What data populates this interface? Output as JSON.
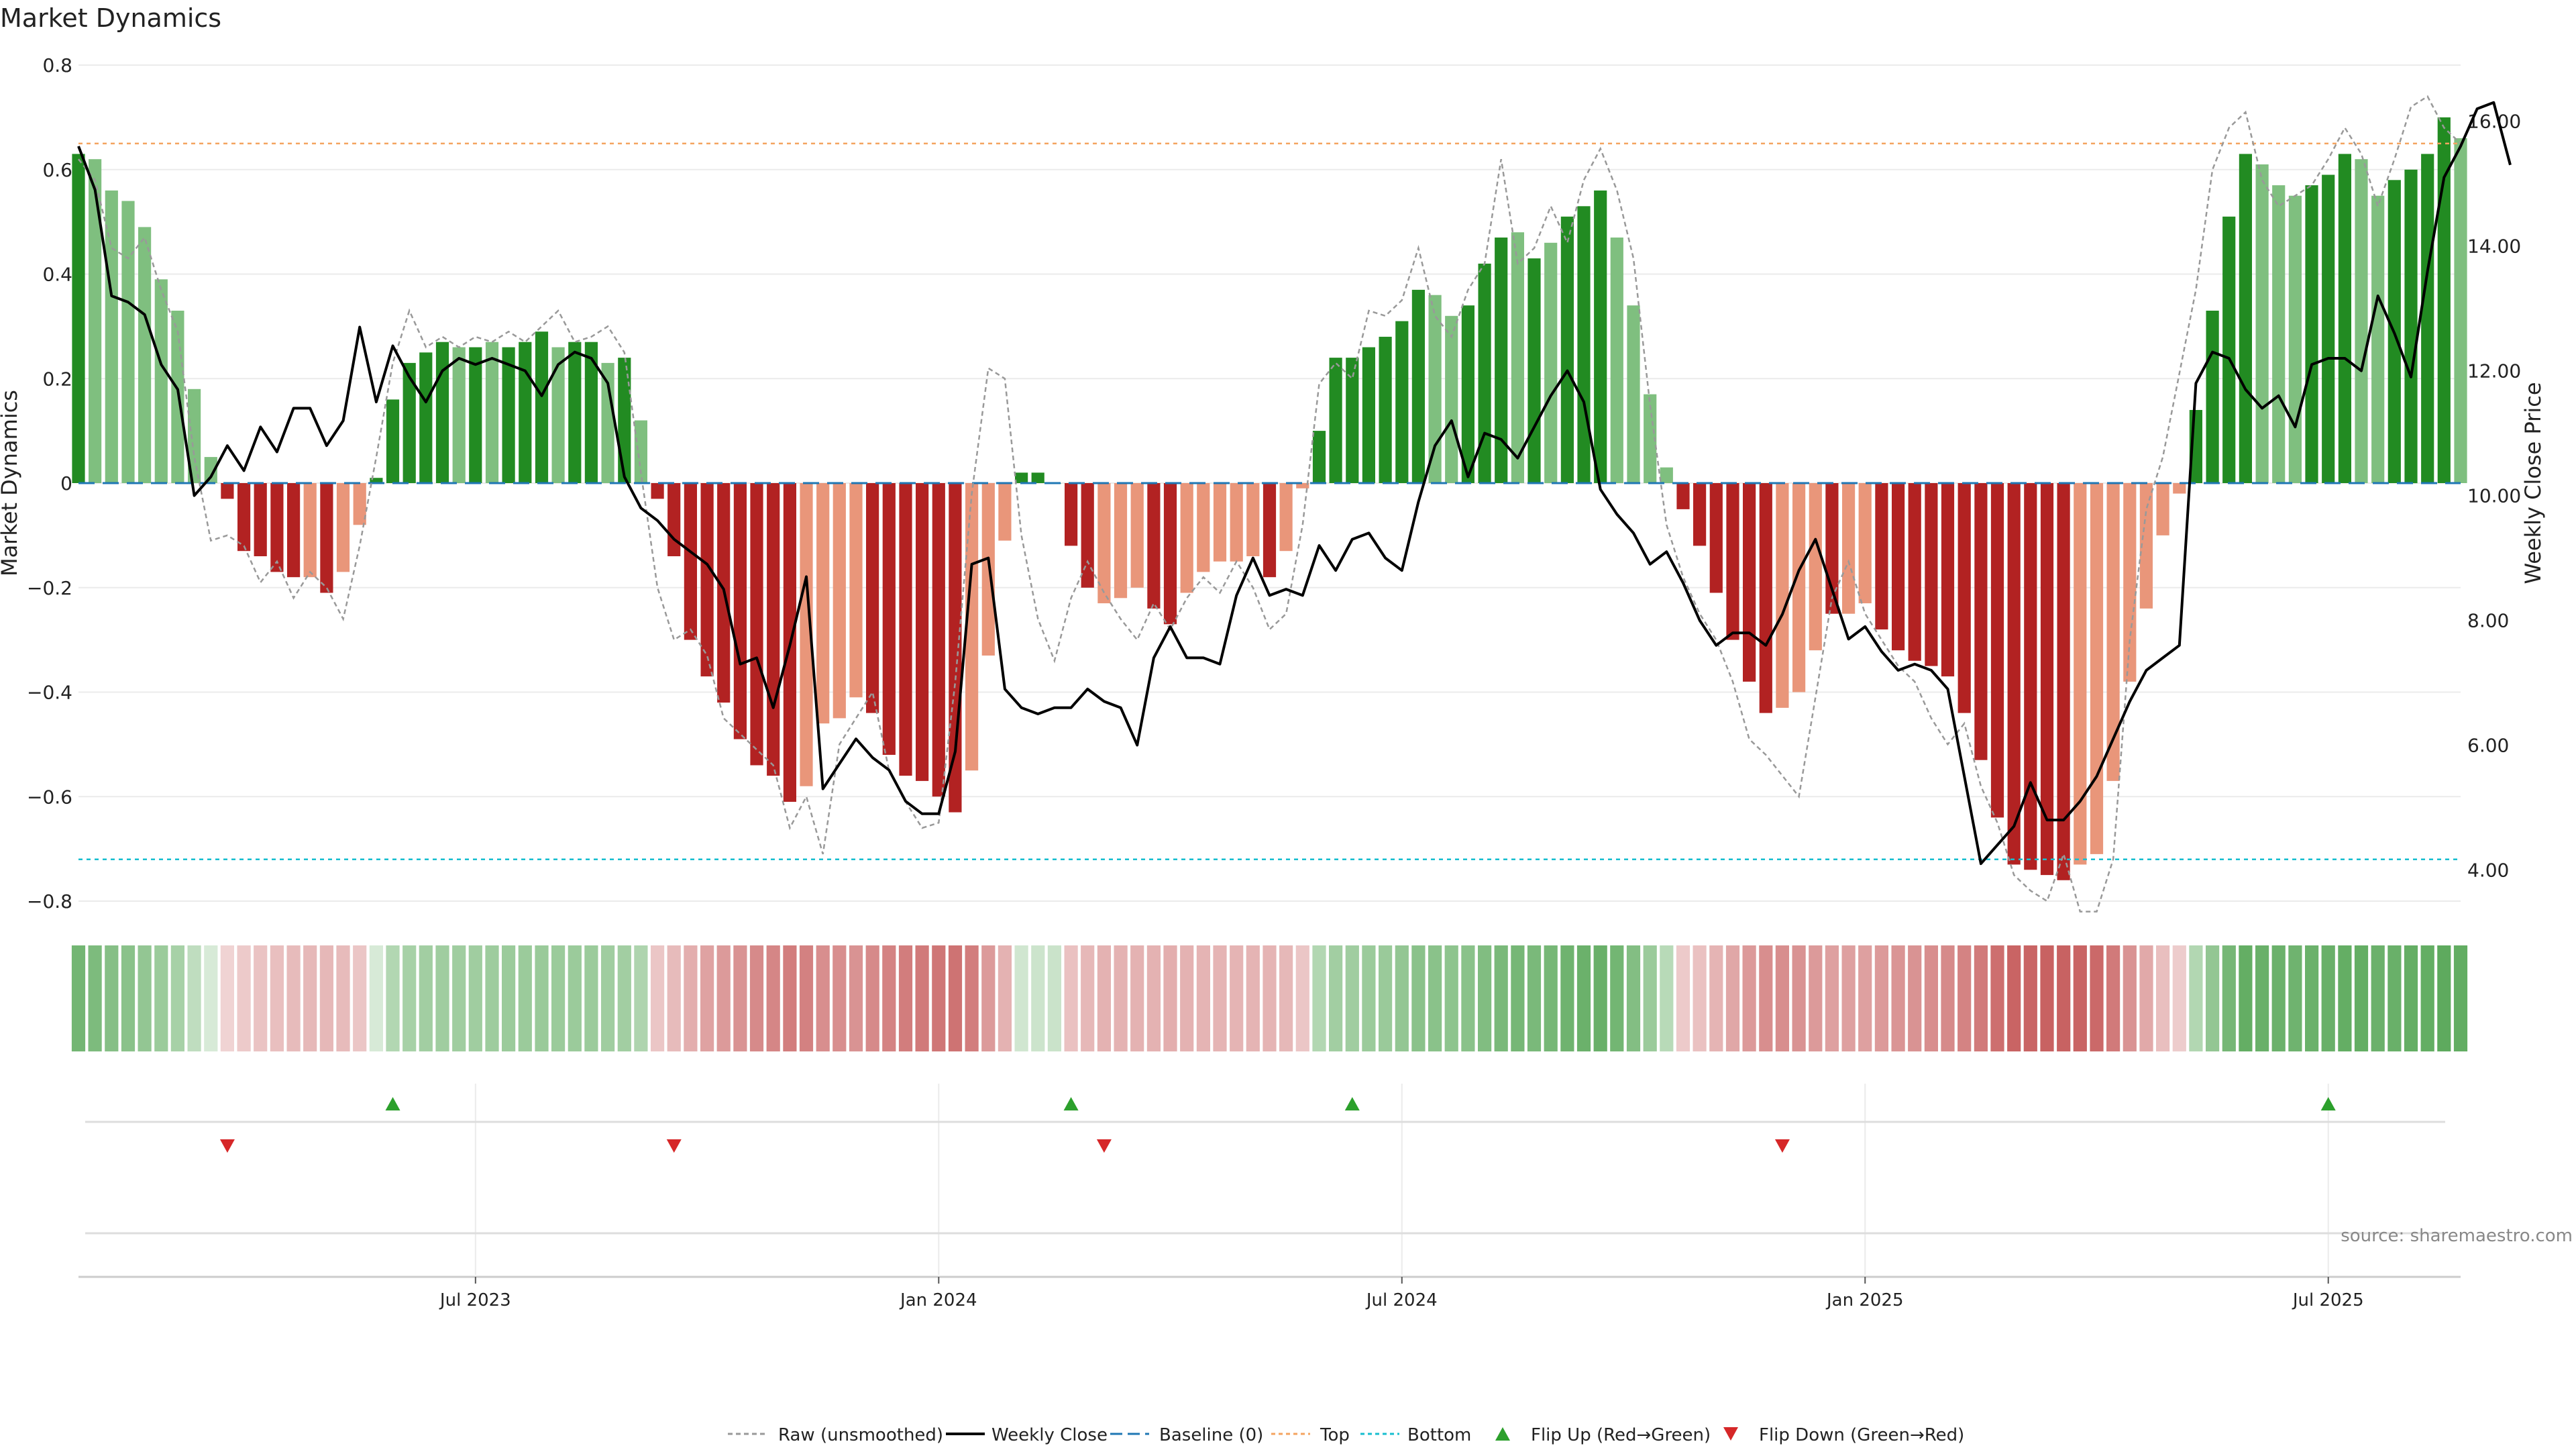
{
  "page_title": "Market Dynamics",
  "source_text": "source: sharemaestro.com",
  "colors": {
    "bar_green_strong": "#228B22",
    "bar_green_light": "#7FBF7F",
    "bar_red_strong": "#B22222",
    "bar_red_light": "#E9967A",
    "close_line": "#000000",
    "raw_line": "#999999",
    "baseline": "#1F77B4",
    "top_line": "#F4A460",
    "bottom_line": "#17BECF",
    "flip_up": "#2CA02C",
    "flip_down": "#D62728",
    "grid": "#EBEBEB"
  },
  "chart_data": {
    "type": "bar",
    "title": "Market Dynamics",
    "ylabel": "Market Dynamics",
    "y2label": "Weekly Close Price",
    "ylim": [
      -0.8,
      0.8
    ],
    "y_ticks": [
      "0.8",
      "0.6",
      "0.4",
      "0.2",
      "0",
      "−0.2",
      "−0.4",
      "−0.6",
      "−0.8"
    ],
    "y_tick_values": [
      0.8,
      0.6,
      0.4,
      0.2,
      0,
      -0.2,
      -0.4,
      -0.6,
      -0.8
    ],
    "y2lim": [
      3.5,
      16.9
    ],
    "y2_ticks": [
      "16.00",
      "14.00",
      "12.00",
      "10.00",
      "8.00",
      "6.00",
      "4.00"
    ],
    "y2_tick_values": [
      16,
      14,
      12,
      10,
      8,
      6,
      4
    ],
    "x_tick_labels": [
      "Jul 2023",
      "Jan 2024",
      "Jul 2024",
      "Jan 2025",
      "Jul 2025"
    ],
    "x_tick_index": [
      24,
      52,
      80,
      108,
      136
    ],
    "top_level": 0.65,
    "bottom_level": -0.72,
    "grid": true,
    "legend_placement": "bottom-center",
    "legend": [
      "Raw (unsmoothed)",
      "Weekly Close",
      "Baseline (0)",
      "Top",
      "Bottom",
      "Flip Up (Red→Green)",
      "Flip Down (Green→Red)"
    ],
    "bar_values": [
      0.63,
      0.62,
      0.56,
      0.54,
      0.49,
      0.39,
      0.33,
      0.18,
      0.05,
      -0.03,
      -0.13,
      -0.14,
      -0.17,
      -0.18,
      -0.18,
      -0.21,
      -0.17,
      -0.08,
      0.01,
      0.16,
      0.23,
      0.25,
      0.27,
      0.26,
      0.26,
      0.27,
      0.26,
      0.27,
      0.29,
      0.26,
      0.27,
      0.27,
      0.23,
      0.24,
      0.12,
      -0.03,
      -0.14,
      -0.3,
      -0.37,
      -0.42,
      -0.49,
      -0.54,
      -0.56,
      -0.61,
      -0.58,
      -0.46,
      -0.45,
      -0.41,
      -0.44,
      -0.52,
      -0.56,
      -0.57,
      -0.6,
      -0.63,
      -0.55,
      -0.33,
      -0.11,
      0.02,
      0.02,
      0.0,
      -0.12,
      -0.2,
      -0.23,
      -0.22,
      -0.2,
      -0.24,
      -0.27,
      -0.21,
      -0.17,
      -0.15,
      -0.15,
      -0.14,
      -0.18,
      -0.13,
      -0.01,
      0.1,
      0.24,
      0.24,
      0.26,
      0.28,
      0.31,
      0.37,
      0.36,
      0.32,
      0.34,
      0.42,
      0.47,
      0.48,
      0.43,
      0.46,
      0.51,
      0.53,
      0.56,
      0.47,
      0.34,
      0.17,
      0.03,
      -0.05,
      -0.12,
      -0.21,
      -0.3,
      -0.38,
      -0.44,
      -0.43,
      -0.4,
      -0.32,
      -0.25,
      -0.25,
      -0.23,
      -0.28,
      -0.32,
      -0.34,
      -0.35,
      -0.37,
      -0.44,
      -0.53,
      -0.64,
      -0.73,
      -0.74,
      -0.75,
      -0.76,
      -0.73,
      -0.71,
      -0.57,
      -0.38,
      -0.24,
      -0.1,
      -0.02,
      0.14,
      0.33,
      0.51,
      0.63,
      0.61,
      0.57,
      0.55,
      0.57,
      0.59,
      0.63,
      0.62,
      0.55,
      0.58,
      0.6,
      0.63,
      0.7,
      0.66
    ],
    "bar_shade": [
      "strong",
      "light",
      "light",
      "light",
      "light",
      "light",
      "light",
      "light",
      "light",
      "strong",
      "strong",
      "strong",
      "strong",
      "strong",
      "light",
      "strong",
      "light",
      "light",
      "strong",
      "strong",
      "strong",
      "strong",
      "strong",
      "light",
      "strong",
      "light",
      "strong",
      "strong",
      "strong",
      "light",
      "strong",
      "strong",
      "light",
      "strong",
      "light",
      "strong",
      "strong",
      "strong",
      "strong",
      "strong",
      "strong",
      "strong",
      "strong",
      "strong",
      "light",
      "light",
      "light",
      "light",
      "strong",
      "strong",
      "strong",
      "strong",
      "strong",
      "strong",
      "light",
      "light",
      "light",
      "strong",
      "strong",
      "strong",
      "strong",
      "strong",
      "light",
      "light",
      "light",
      "strong",
      "strong",
      "light",
      "light",
      "light",
      "light",
      "light",
      "strong",
      "light",
      "light",
      "strong",
      "strong",
      "strong",
      "strong",
      "strong",
      "strong",
      "strong",
      "light",
      "light",
      "strong",
      "strong",
      "strong",
      "light",
      "strong",
      "light",
      "strong",
      "strong",
      "strong",
      "light",
      "light",
      "light",
      "light",
      "strong",
      "strong",
      "strong",
      "strong",
      "strong",
      "strong",
      "light",
      "light",
      "light",
      "strong",
      "light",
      "light",
      "strong",
      "strong",
      "strong",
      "strong",
      "strong",
      "strong",
      "strong",
      "strong",
      "strong",
      "strong",
      "strong",
      "strong",
      "light",
      "light",
      "light",
      "light",
      "light",
      "light",
      "light",
      "strong",
      "strong",
      "strong",
      "strong",
      "light",
      "light",
      "light",
      "strong",
      "strong",
      "strong",
      "light",
      "light",
      "strong",
      "strong",
      "strong",
      "strong",
      "light"
    ],
    "raw_values": [
      0.62,
      0.58,
      0.45,
      0.43,
      0.47,
      0.37,
      0.29,
      0.05,
      -0.11,
      -0.1,
      -0.12,
      -0.19,
      -0.15,
      -0.22,
      -0.17,
      -0.2,
      -0.26,
      -0.12,
      0.05,
      0.23,
      0.33,
      0.26,
      0.28,
      0.26,
      0.28,
      0.27,
      0.29,
      0.27,
      0.3,
      0.33,
      0.27,
      0.28,
      0.3,
      0.25,
      0.02,
      -0.2,
      -0.3,
      -0.28,
      -0.33,
      -0.45,
      -0.48,
      -0.51,
      -0.54,
      -0.66,
      -0.6,
      -0.71,
      -0.5,
      -0.45,
      -0.4,
      -0.55,
      -0.61,
      -0.66,
      -0.65,
      -0.38,
      -0.02,
      0.22,
      0.2,
      -0.1,
      -0.26,
      -0.34,
      -0.22,
      -0.15,
      -0.21,
      -0.26,
      -0.3,
      -0.23,
      -0.28,
      -0.22,
      -0.18,
      -0.21,
      -0.15,
      -0.2,
      -0.28,
      -0.25,
      -0.08,
      0.19,
      0.23,
      0.2,
      0.33,
      0.32,
      0.35,
      0.45,
      0.32,
      0.28,
      0.37,
      0.42,
      0.62,
      0.42,
      0.45,
      0.53,
      0.46,
      0.58,
      0.64,
      0.56,
      0.43,
      0.15,
      -0.08,
      -0.18,
      -0.25,
      -0.3,
      -0.38,
      -0.49,
      -0.52,
      -0.56,
      -0.6,
      -0.41,
      -0.22,
      -0.15,
      -0.25,
      -0.3,
      -0.35,
      -0.38,
      -0.45,
      -0.5,
      -0.46,
      -0.58,
      -0.65,
      -0.75,
      -0.78,
      -0.8,
      -0.71,
      -0.82,
      -0.82,
      -0.72,
      -0.3,
      -0.05,
      0.05,
      0.21,
      0.37,
      0.6,
      0.68,
      0.71,
      0.58,
      0.53,
      0.55,
      0.57,
      0.62,
      0.68,
      0.63,
      0.53,
      0.62,
      0.72,
      0.74,
      0.68,
      0.65
    ],
    "close_values": [
      15.6,
      14.9,
      13.2,
      13.1,
      12.9,
      12.1,
      11.7,
      10.0,
      10.3,
      10.8,
      10.4,
      11.1,
      10.7,
      11.4,
      11.4,
      10.8,
      11.2,
      12.7,
      11.5,
      12.4,
      11.9,
      11.5,
      12.0,
      12.2,
      12.1,
      12.2,
      12.1,
      12.0,
      11.6,
      12.1,
      12.3,
      12.2,
      11.8,
      10.3,
      9.8,
      9.6,
      9.3,
      9.1,
      8.9,
      8.5,
      7.3,
      7.4,
      6.6,
      7.6,
      8.7,
      5.3,
      5.7,
      6.1,
      5.8,
      5.6,
      5.1,
      4.9,
      4.9,
      5.9,
      8.9,
      9.0,
      6.9,
      6.6,
      6.5,
      6.6,
      6.6,
      6.9,
      6.7,
      6.6,
      6.0,
      7.4,
      7.9,
      7.4,
      7.4,
      7.3,
      8.4,
      9.0,
      8.4,
      8.5,
      8.4,
      9.2,
      8.8,
      9.3,
      9.4,
      9.0,
      8.8,
      9.9,
      10.8,
      11.2,
      10.3,
      11.0,
      10.9,
      10.6,
      11.1,
      11.6,
      12.0,
      11.5,
      10.1,
      9.7,
      9.4,
      8.9,
      9.1,
      8.6,
      8.0,
      7.6,
      7.8,
      7.8,
      7.6,
      8.1,
      8.8,
      9.3,
      8.5,
      7.7,
      7.9,
      7.5,
      7.2,
      7.3,
      7.2,
      6.9,
      5.5,
      4.1,
      4.4,
      4.7,
      5.4,
      4.8,
      4.8,
      5.1,
      5.5,
      6.1,
      6.7,
      7.2,
      7.4,
      7.6,
      11.8,
      12.3,
      12.2,
      11.7,
      11.4,
      11.6,
      11.1,
      12.1,
      12.2,
      12.2,
      12.0,
      13.2,
      12.6,
      11.9,
      13.6,
      15.1,
      15.6,
      16.2,
      16.3,
      15.3
    ],
    "strength_strip": [
      0.66,
      0.6,
      0.55,
      0.52,
      0.47,
      0.42,
      0.36,
      0.22,
      0.08,
      0.1,
      0.16,
      0.19,
      0.22,
      0.24,
      0.25,
      0.25,
      0.24,
      0.18,
      0.08,
      0.3,
      0.36,
      0.38,
      0.4,
      0.4,
      0.4,
      0.41,
      0.42,
      0.42,
      0.43,
      0.42,
      0.42,
      0.42,
      0.4,
      0.38,
      0.32,
      0.18,
      0.24,
      0.32,
      0.38,
      0.44,
      0.48,
      0.52,
      0.55,
      0.6,
      0.58,
      0.5,
      0.5,
      0.48,
      0.52,
      0.56,
      0.6,
      0.62,
      0.64,
      0.66,
      0.6,
      0.44,
      0.3,
      0.12,
      0.14,
      0.15,
      0.2,
      0.26,
      0.3,
      0.3,
      0.3,
      0.3,
      0.32,
      0.3,
      0.28,
      0.28,
      0.28,
      0.28,
      0.28,
      0.26,
      0.18,
      0.3,
      0.38,
      0.4,
      0.42,
      0.44,
      0.47,
      0.52,
      0.52,
      0.5,
      0.52,
      0.58,
      0.62,
      0.64,
      0.62,
      0.64,
      0.68,
      0.7,
      0.72,
      0.66,
      0.56,
      0.42,
      0.26,
      0.15,
      0.2,
      0.28,
      0.36,
      0.44,
      0.5,
      0.5,
      0.48,
      0.44,
      0.4,
      0.4,
      0.4,
      0.44,
      0.46,
      0.48,
      0.5,
      0.52,
      0.56,
      0.62,
      0.68,
      0.74,
      0.75,
      0.76,
      0.76,
      0.74,
      0.72,
      0.62,
      0.48,
      0.34,
      0.22,
      0.14,
      0.3,
      0.48,
      0.64,
      0.74,
      0.72,
      0.7,
      0.68,
      0.7,
      0.72,
      0.74,
      0.74,
      0.7,
      0.72,
      0.74,
      0.75,
      0.78,
      0.76
    ],
    "flip_up_index": [
      19,
      60,
      77,
      136
    ],
    "flip_down_index": [
      9,
      36,
      62,
      103
    ]
  }
}
